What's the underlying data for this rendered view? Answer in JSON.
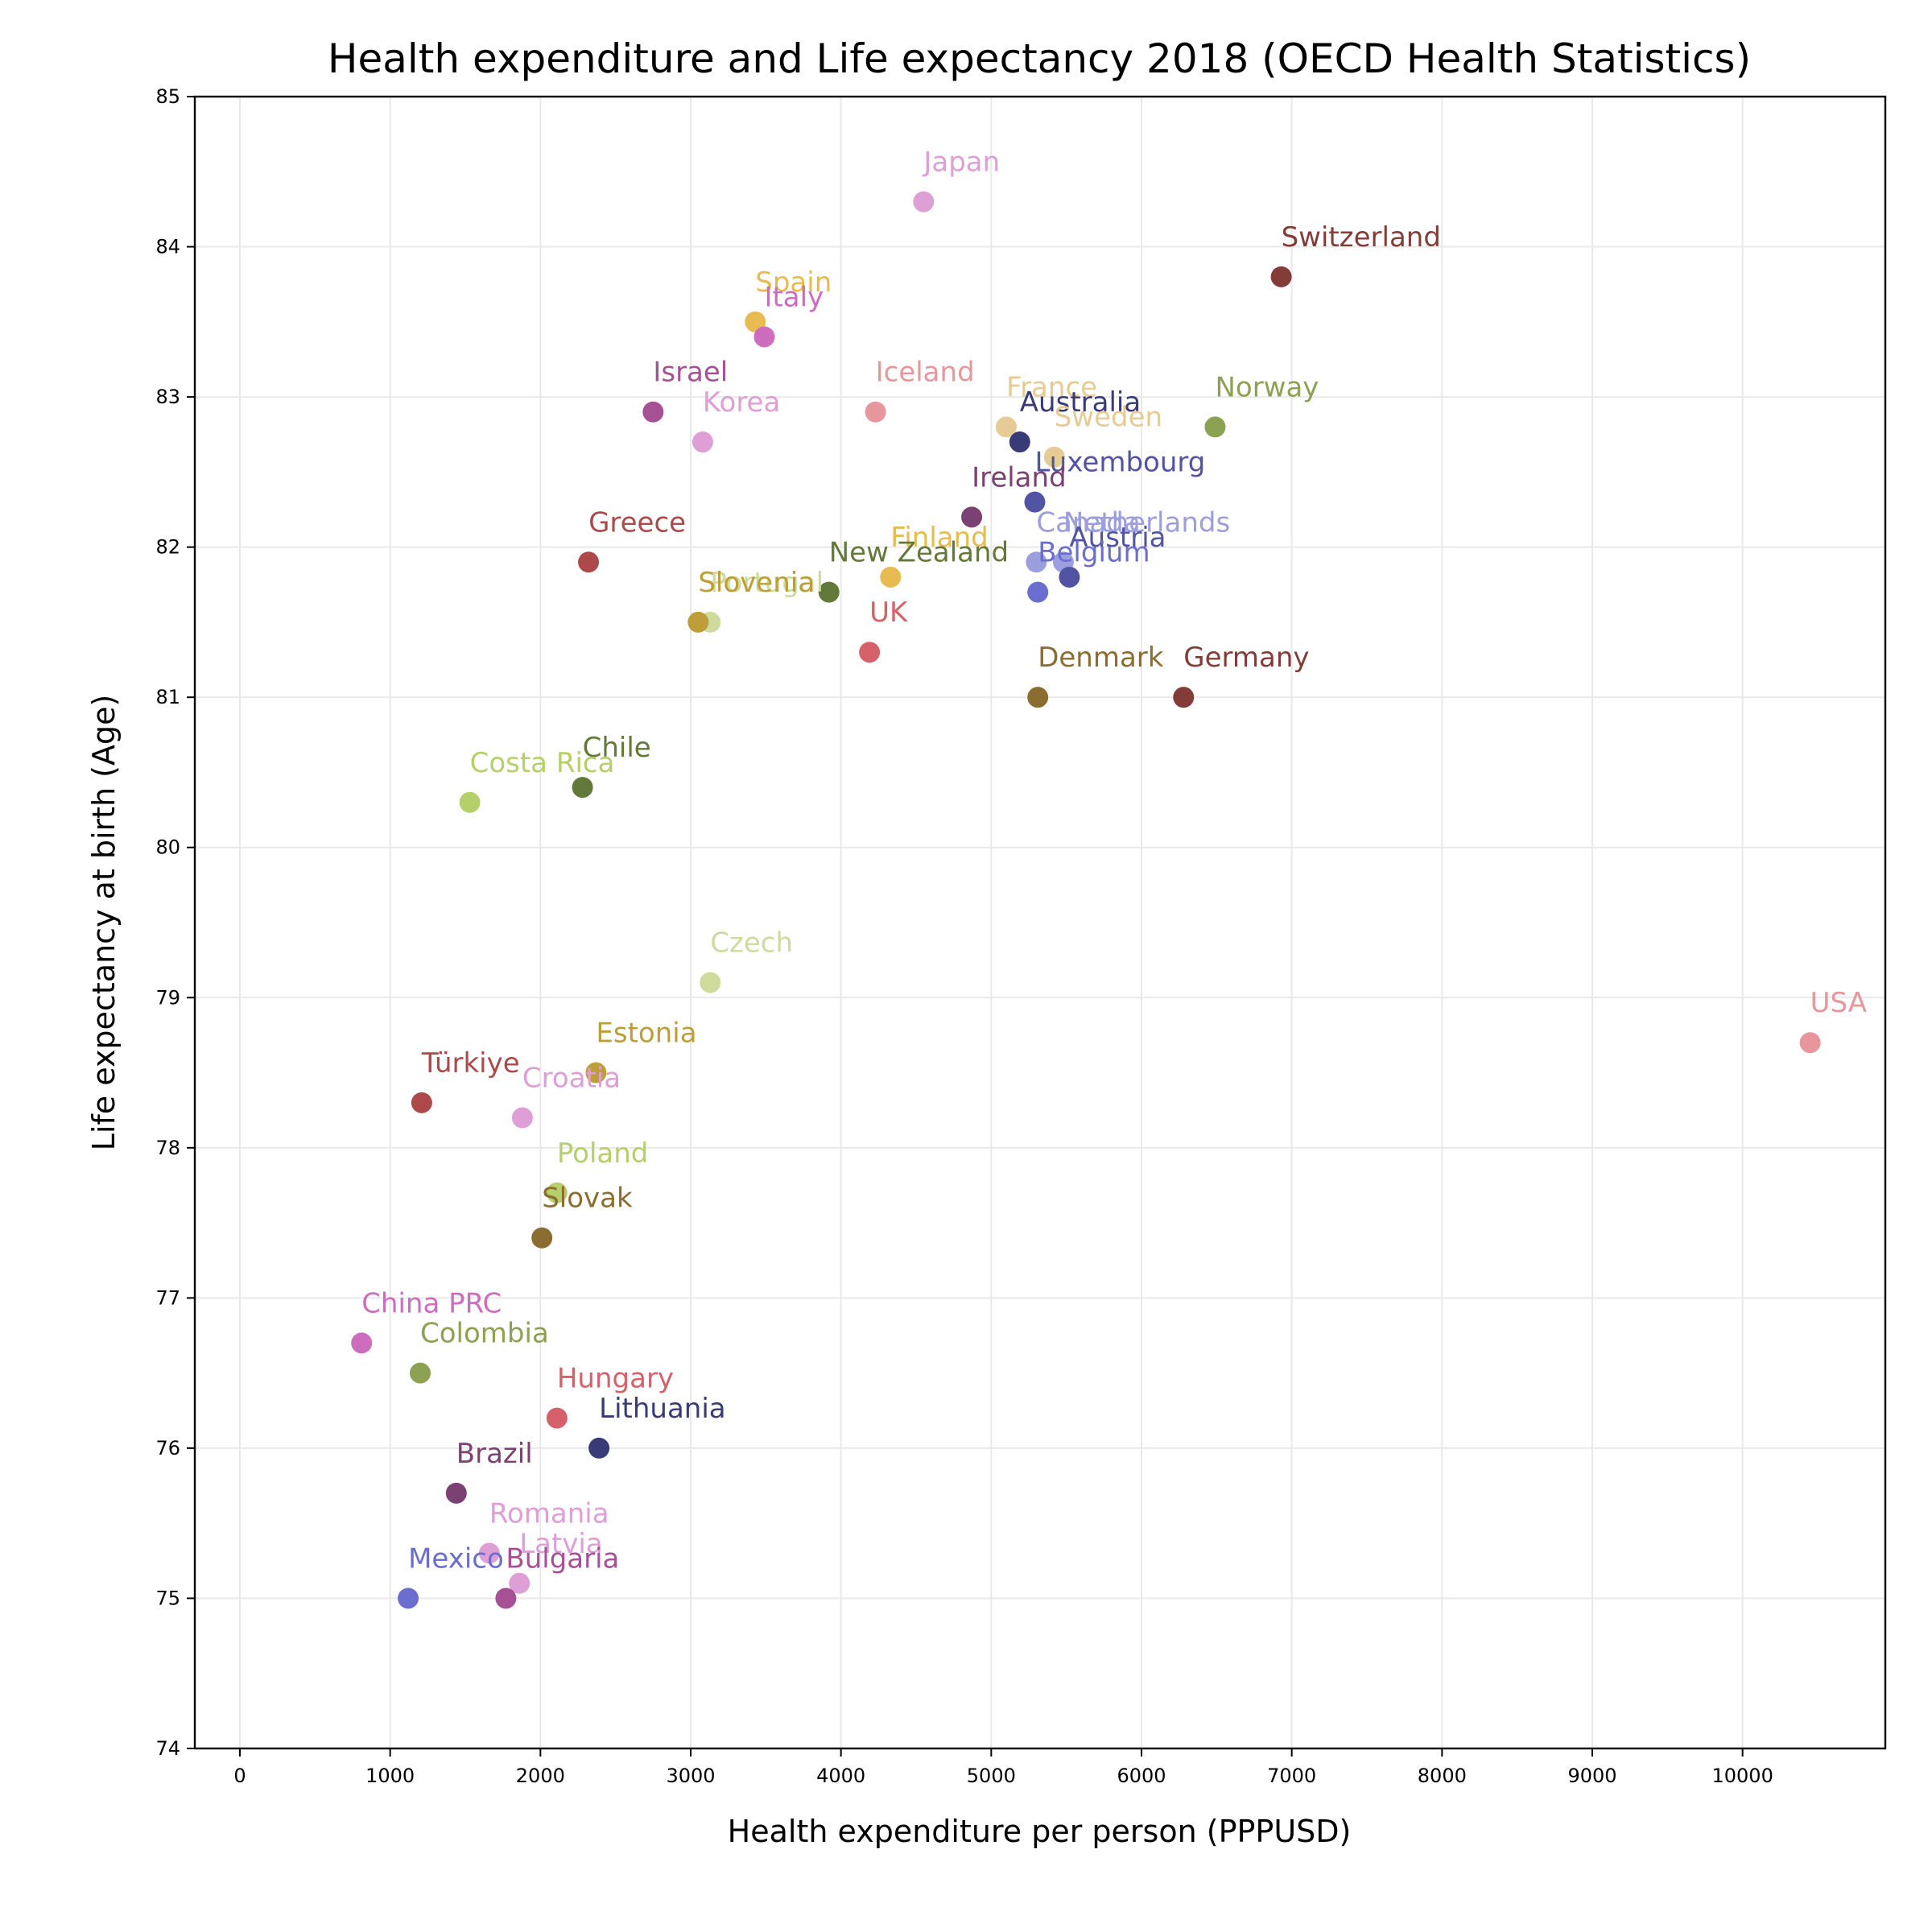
{
  "chart_data": {
    "type": "scatter",
    "title": "Health expenditure and Life expectancy 2018 (OECD Health Statistics)",
    "xlabel": "Health expenditure per person (PPPUSD)",
    "ylabel": "Life expectancy at birth (Age)",
    "xlim": [
      -300,
      10950
    ],
    "ylim": [
      74,
      85
    ],
    "xticks": [
      0,
      1000,
      2000,
      3000,
      4000,
      5000,
      6000,
      7000,
      8000,
      9000,
      10000
    ],
    "yticks": [
      74,
      75,
      76,
      77,
      78,
      79,
      80,
      81,
      82,
      83,
      84,
      85
    ],
    "grid": true,
    "points": [
      {
        "label": "Japan",
        "x": 4550,
        "y": 84.3,
        "color": "#de9ed6"
      },
      {
        "label": "Switzerland",
        "x": 6930,
        "y": 83.8,
        "color": "#843c39"
      },
      {
        "label": "Spain",
        "x": 3430,
        "y": 83.5,
        "color": "#e7ba52"
      },
      {
        "label": "Italy",
        "x": 3490,
        "y": 83.4,
        "color": "#ce6dbd"
      },
      {
        "label": "Israel",
        "x": 2750,
        "y": 82.9,
        "color": "#a55194"
      },
      {
        "label": "Iceland",
        "x": 4230,
        "y": 82.9,
        "color": "#e7969c"
      },
      {
        "label": "Norway",
        "x": 6490,
        "y": 82.8,
        "color": "#8ca252"
      },
      {
        "label": "France",
        "x": 5100,
        "y": 82.8,
        "color": "#e7cb94"
      },
      {
        "label": "Australia",
        "x": 5190,
        "y": 82.7,
        "color": "#393b79"
      },
      {
        "label": "Korea",
        "x": 3080,
        "y": 82.7,
        "color": "#de9ed6"
      },
      {
        "label": "Sweden",
        "x": 5420,
        "y": 82.6,
        "color": "#e7cb94"
      },
      {
        "label": "Luxembourg",
        "x": 5290,
        "y": 82.3,
        "color": "#5254a3"
      },
      {
        "label": "Ireland",
        "x": 4870,
        "y": 82.2,
        "color": "#7b4173"
      },
      {
        "label": "Canada",
        "x": 5300,
        "y": 81.9,
        "color": "#9c9ede"
      },
      {
        "label": "Netherlands",
        "x": 5480,
        "y": 81.9,
        "color": "#9c9ede"
      },
      {
        "label": "Greece",
        "x": 2320,
        "y": 81.9,
        "color": "#ad494a"
      },
      {
        "label": "Austria",
        "x": 5520,
        "y": 81.8,
        "color": "#5254a3"
      },
      {
        "label": "Finland",
        "x": 4330,
        "y": 81.8,
        "color": "#e7ba52"
      },
      {
        "label": "Belgium",
        "x": 5310,
        "y": 81.7,
        "color": "#6b6ecf"
      },
      {
        "label": "New Zealand",
        "x": 3920,
        "y": 81.7,
        "color": "#637939"
      },
      {
        "label": "Portugal",
        "x": 3130,
        "y": 81.5,
        "color": "#cedb9c"
      },
      {
        "label": "Slovenia",
        "x": 3050,
        "y": 81.5,
        "color": "#bd9e39"
      },
      {
        "label": "UK",
        "x": 4190,
        "y": 81.3,
        "color": "#d6616b"
      },
      {
        "label": "Denmark",
        "x": 5310,
        "y": 81.0,
        "color": "#8c6d31"
      },
      {
        "label": "Germany",
        "x": 6280,
        "y": 81.0,
        "color": "#843c39"
      },
      {
        "label": "Chile",
        "x": 2280,
        "y": 80.4,
        "color": "#637939"
      },
      {
        "label": "Costa Rica",
        "x": 1530,
        "y": 80.3,
        "color": "#b5cf6b"
      },
      {
        "label": "Czech",
        "x": 3130,
        "y": 79.1,
        "color": "#cedb9c"
      },
      {
        "label": "USA",
        "x": 10450,
        "y": 78.7,
        "color": "#e7969c"
      },
      {
        "label": "Estonia",
        "x": 2370,
        "y": 78.5,
        "color": "#bd9e39"
      },
      {
        "label": "Türkiye",
        "x": 1210,
        "y": 78.3,
        "color": "#ad494a"
      },
      {
        "label": "Croatia",
        "x": 1880,
        "y": 78.2,
        "color": "#de9ed6"
      },
      {
        "label": "Poland",
        "x": 2110,
        "y": 77.7,
        "color": "#b5cf6b"
      },
      {
        "label": "Slovak",
        "x": 2010,
        "y": 77.4,
        "color": "#8c6d31"
      },
      {
        "label": "China PRC",
        "x": 810,
        "y": 76.7,
        "color": "#ce6dbd"
      },
      {
        "label": "Colombia",
        "x": 1200,
        "y": 76.5,
        "color": "#8ca252"
      },
      {
        "label": "Hungary",
        "x": 2110,
        "y": 76.2,
        "color": "#d6616b"
      },
      {
        "label": "Lithuania",
        "x": 2390,
        "y": 76.0,
        "color": "#393b79"
      },
      {
        "label": "Brazil",
        "x": 1440,
        "y": 75.7,
        "color": "#7b4173"
      },
      {
        "label": "Romania",
        "x": 1660,
        "y": 75.3,
        "color": "#de9ed6"
      },
      {
        "label": "Latvia",
        "x": 1860,
        "y": 75.1,
        "color": "#de9ed6"
      },
      {
        "label": "Mexico",
        "x": 1120,
        "y": 75.0,
        "color": "#6b6ecf"
      },
      {
        "label": "Bulgaria",
        "x": 1770,
        "y": 75.0,
        "color": "#a55194"
      }
    ]
  }
}
